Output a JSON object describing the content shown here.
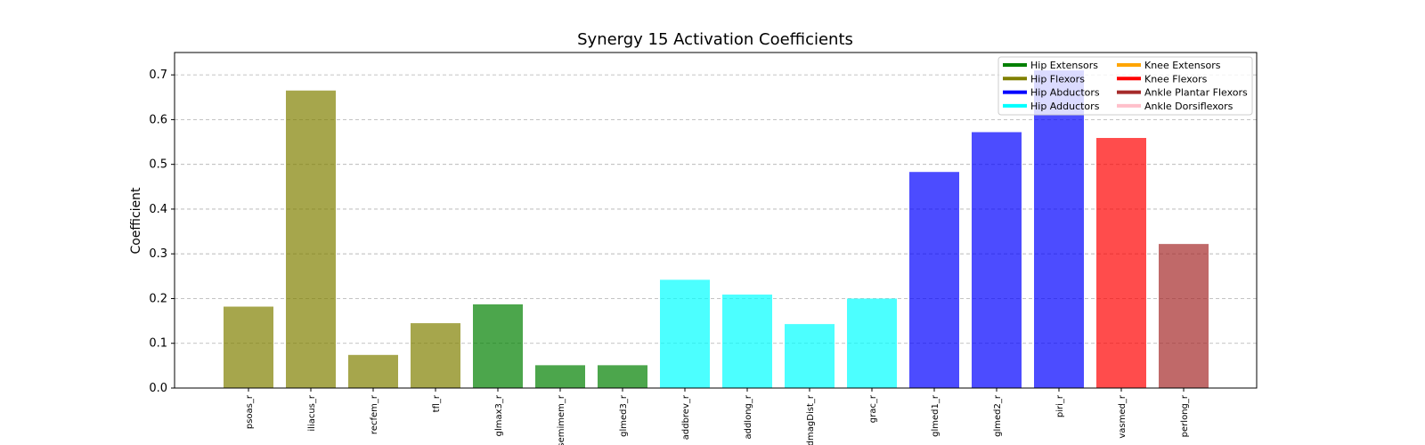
{
  "chart_data": {
    "type": "bar",
    "title": "Synergy 15 Activation Coefficients",
    "xlabel": "",
    "ylabel": "Coefficient",
    "ylim": [
      0,
      0.75
    ],
    "yticks": [
      "0.0",
      "0.1",
      "0.2",
      "0.3",
      "0.4",
      "0.5",
      "0.6",
      "0.7"
    ],
    "grid": "y-dashed",
    "legend_position": "top-right",
    "categories": [
      "psoas_r",
      "iliacus_r",
      "recfem_r",
      "tfl_r",
      "glmax3_r",
      "semimem_r",
      "glmed3_r",
      "addbrev_r",
      "addlong_r",
      "addmagDist_r",
      "grac_r",
      "glmed1_r",
      "glmed2_r",
      "piri_r",
      "vasmed_r",
      "perlong_r"
    ],
    "values": [
      0.182,
      0.665,
      0.074,
      0.145,
      0.187,
      0.051,
      0.051,
      0.242,
      0.209,
      0.143,
      0.2,
      0.483,
      0.572,
      0.71,
      0.559,
      0.322
    ],
    "bar_groups": [
      "Hip Flexors",
      "Hip Flexors",
      "Hip Flexors",
      "Hip Flexors",
      "Hip Extensors",
      "Hip Extensors",
      "Hip Extensors",
      "Hip Adductors",
      "Hip Adductors",
      "Hip Adductors",
      "Hip Adductors",
      "Hip Abductors",
      "Hip Abductors",
      "Hip Abductors",
      "Knee Flexors",
      "Ankle Plantar Flexors"
    ],
    "legend": [
      {
        "name": "Hip Extensors",
        "color": "#008000"
      },
      {
        "name": "Hip Flexors",
        "color": "#808000"
      },
      {
        "name": "Hip Abductors",
        "color": "#0000ff"
      },
      {
        "name": "Hip Adductors",
        "color": "#00ffff"
      },
      {
        "name": "Knee Extensors",
        "color": "#ffa500"
      },
      {
        "name": "Knee Flexors",
        "color": "#ff0000"
      },
      {
        "name": "Ankle Plantar Flexors",
        "color": "#a52a2a"
      },
      {
        "name": "Ankle Dorsiflexors",
        "color": "#ffc0cb"
      }
    ],
    "bar_opacity": 0.7
  }
}
